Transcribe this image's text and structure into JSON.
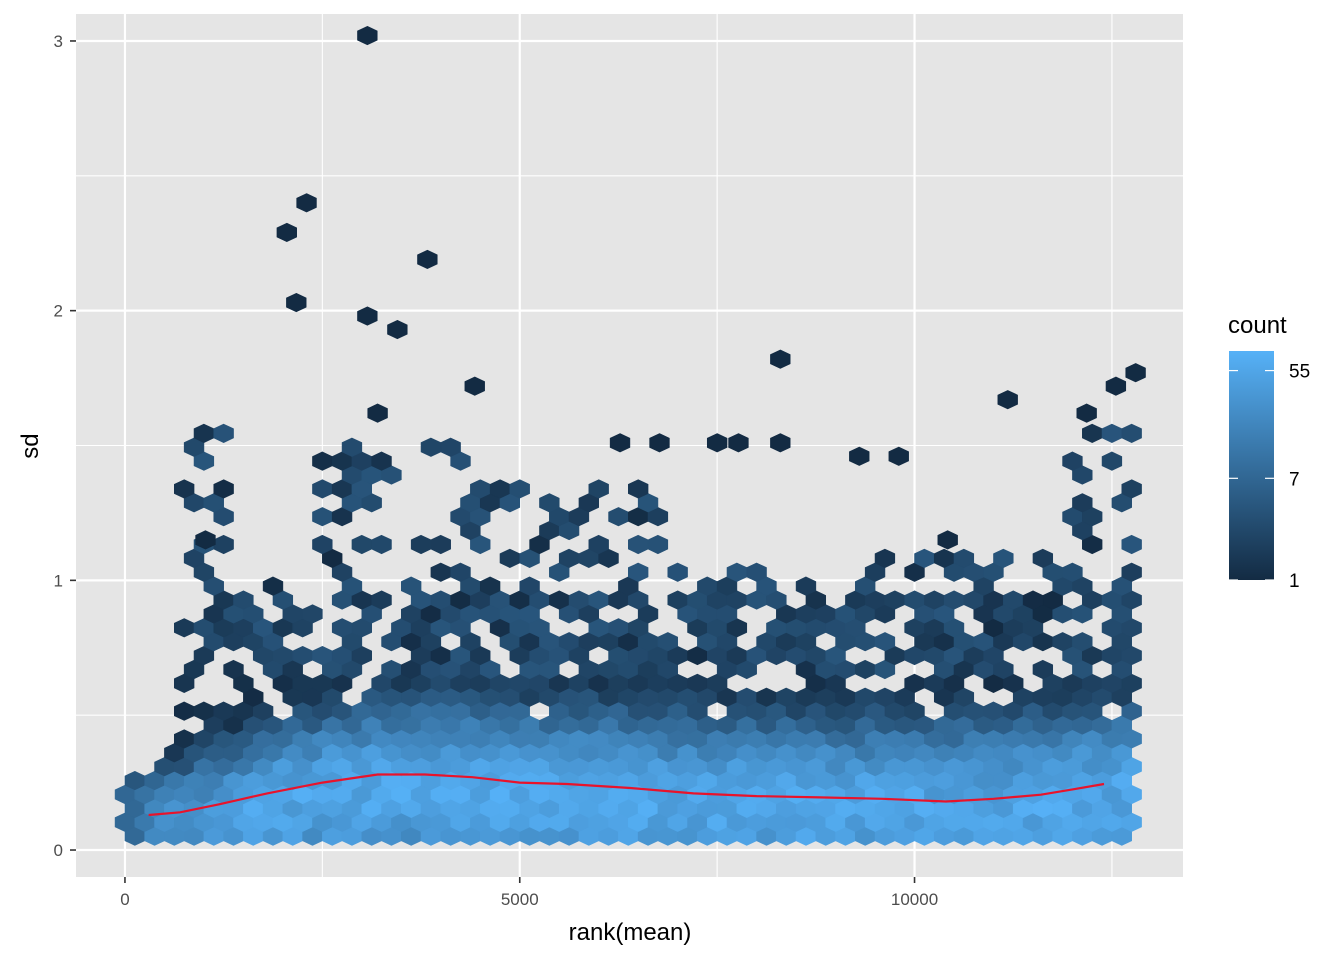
{
  "chart_data": {
    "type": "heatmap",
    "subtype": "hexbin",
    "xlabel": "rank(mean)",
    "ylabel": "sd",
    "xlim": [
      -620,
      13400
    ],
    "ylim": [
      -0.1,
      3.1
    ],
    "x_ticks": [
      0,
      5000,
      10000
    ],
    "x_tick_labels": [
      "0",
      "5000",
      "10000"
    ],
    "y_ticks": [
      0,
      1,
      2,
      3
    ],
    "y_tick_labels": [
      "0",
      "1",
      "2",
      "3"
    ],
    "x_minor": [
      2500,
      7500,
      12500
    ],
    "y_minor": [
      0.5,
      1.5,
      2.5
    ],
    "grid": true,
    "hex_width": 250,
    "hex_rows_step": 0.0515,
    "x_range": [
      0,
      12800
    ],
    "colors": {
      "panel_bg": "#e5e5e5",
      "grid": "#ffffff",
      "low": "#132b43",
      "high": "#56b1f7",
      "smooth": "#e8132b"
    },
    "legend": {
      "title": "count",
      "position": "right",
      "scale": "log",
      "min": 1,
      "max": 80,
      "breaks": [
        1,
        7,
        55
      ],
      "break_labels": [
        "1",
        "7",
        "55"
      ]
    },
    "smooth_line": {
      "name": "loess",
      "x": [
        300,
        700,
        1200,
        1800,
        2500,
        3200,
        3800,
        4400,
        5000,
        5600,
        6400,
        7200,
        8000,
        8800,
        9600,
        10400,
        11000,
        11600,
        12000,
        12400
      ],
      "y": [
        0.13,
        0.14,
        0.17,
        0.21,
        0.25,
        0.28,
        0.28,
        0.27,
        0.25,
        0.245,
        0.23,
        0.21,
        0.2,
        0.195,
        0.19,
        0.18,
        0.19,
        0.205,
        0.225,
        0.245
      ]
    },
    "outliers": [
      {
        "x": 3070,
        "y": 3.02
      },
      {
        "x": 2300,
        "y": 2.4
      },
      {
        "x": 2050,
        "y": 2.29
      },
      {
        "x": 3830,
        "y": 2.19
      },
      {
        "x": 2170,
        "y": 2.03
      },
      {
        "x": 3070,
        "y": 1.98
      },
      {
        "x": 3450,
        "y": 1.93
      },
      {
        "x": 8300,
        "y": 1.82
      },
      {
        "x": 12800,
        "y": 1.77
      },
      {
        "x": 4430,
        "y": 1.72
      },
      {
        "x": 12550,
        "y": 1.72
      },
      {
        "x": 11180,
        "y": 1.67
      },
      {
        "x": 3200,
        "y": 1.62
      },
      {
        "x": 12180,
        "y": 1.62
      },
      {
        "x": 7500,
        "y": 1.51
      },
      {
        "x": 7770,
        "y": 1.51
      },
      {
        "x": 8300,
        "y": 1.51
      },
      {
        "x": 6270,
        "y": 1.51
      },
      {
        "x": 6770,
        "y": 1.51
      },
      {
        "x": 9800,
        "y": 1.46
      },
      {
        "x": 9300,
        "y": 1.46
      },
      {
        "x": 1020,
        "y": 1.15
      },
      {
        "x": 10420,
        "y": 1.15
      }
    ],
    "sparse_regions": [
      {
        "x": [
          1300,
          2400
        ],
        "ymin": 0.75,
        "ymax": 1.0
      },
      {
        "x": [
          2400,
          4500
        ],
        "ymin": 0.7,
        "ymax": 1.5
      },
      {
        "x": [
          4500,
          7000
        ],
        "ymin": 0.7,
        "ymax": 1.35
      },
      {
        "x": [
          7000,
          9500
        ],
        "ymin": 0.7,
        "ymax": 1.05
      },
      {
        "x": [
          9500,
          12000
        ],
        "ymin": 0.7,
        "ymax": 1.1
      },
      {
        "x": [
          12000,
          12800
        ],
        "ymin": 0.7,
        "ymax": 1.55
      }
    ]
  }
}
